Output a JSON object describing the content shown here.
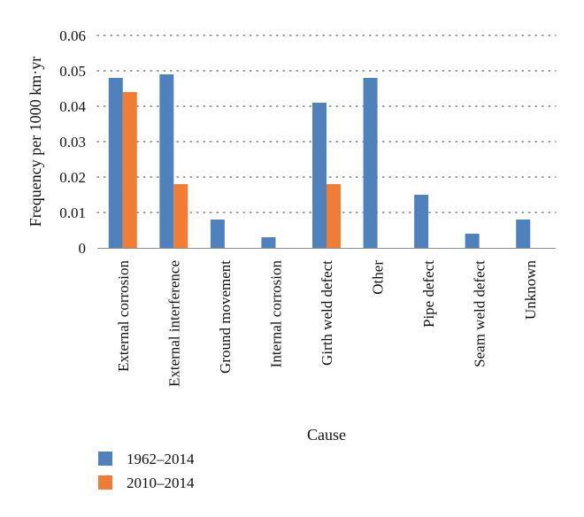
{
  "chart_data": {
    "type": "bar",
    "categories": [
      "External corrosion",
      "External interference",
      "Ground movement",
      "Internal corrosion",
      "Girth weld defect",
      "Other",
      "Pipe defect",
      "Seam weld defect",
      "Unknown"
    ],
    "series": [
      {
        "name": "1962–2014",
        "color": "#4F81BD",
        "values": [
          0.048,
          0.049,
          0.008,
          0.003,
          0.041,
          0.048,
          0.015,
          0.004,
          0.008
        ]
      },
      {
        "name": "2010–2014",
        "color": "#F07D33",
        "values": [
          0.044,
          0.018,
          null,
          null,
          0.018,
          null,
          null,
          null,
          null
        ]
      }
    ],
    "xlabel": "Cause",
    "ylabel": "Frequency per 1000 km·yr",
    "ylim": [
      0,
      0.06
    ],
    "yticks": [
      "0",
      "0.01",
      "0.02",
      "0.03",
      "0.04",
      "0.05",
      "0.06"
    ],
    "grid": true,
    "legend_position": "bottom-left"
  }
}
